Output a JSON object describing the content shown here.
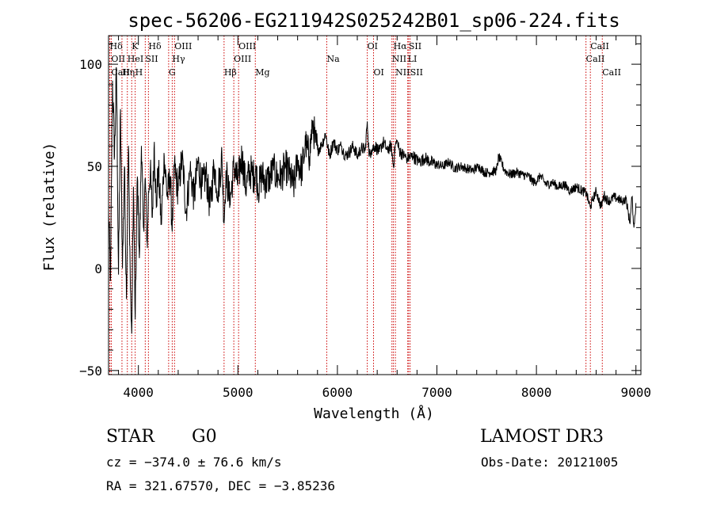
{
  "chart_data": {
    "type": "line",
    "title": "spec-56206-EG211942S025242B01_sp06-224.fits",
    "xlabel": "Wavelength (Å)",
    "ylabel": "Flux (relative)",
    "xlim": [
      3700,
      9050
    ],
    "ylim": [
      -52,
      114
    ],
    "xticks": [
      4000,
      5000,
      6000,
      7000,
      8000,
      9000
    ],
    "xtick_labels": [
      "4000",
      "5000",
      "6000",
      "7000",
      "8000",
      "9000"
    ],
    "yticks": [
      -50,
      0,
      50,
      100
    ],
    "ytick_labels": [
      "−50",
      "0",
      "50",
      "100"
    ],
    "grid": false,
    "series": [
      {
        "color": "#000000",
        "x": [
          3700,
          3720,
          3740,
          3760,
          3780,
          3800,
          3820,
          3840,
          3860,
          3880,
          3900,
          3920,
          3933,
          3950,
          3968,
          3990,
          4010,
          4030,
          4050,
          4070,
          4090,
          4101,
          4120,
          4140,
          4160,
          4180,
          4200,
          4230,
          4260,
          4290,
          4320,
          4340,
          4360,
          4400,
          4440,
          4480,
          4520,
          4560,
          4600,
          4640,
          4680,
          4720,
          4760,
          4800,
          4840,
          4861,
          4880,
          4920,
          4960,
          5000,
          5040,
          5080,
          5120,
          5160,
          5183,
          5200,
          5240,
          5280,
          5320,
          5360,
          5400,
          5440,
          5480,
          5520,
          5560,
          5600,
          5640,
          5680,
          5720,
          5750,
          5780,
          5800,
          5840,
          5880,
          5920,
          5960,
          6000,
          6040,
          6080,
          6120,
          6160,
          6200,
          6240,
          6280,
          6300,
          6320,
          6340,
          6380,
          6420,
          6460,
          6500,
          6540,
          6563,
          6580,
          6600,
          6620,
          6650,
          6700,
          6760,
          6820,
          6880,
          6940,
          7000,
          7060,
          7120,
          7180,
          7240,
          7300,
          7360,
          7420,
          7480,
          7540,
          7600,
          7620,
          7680,
          7740,
          7800,
          7860,
          7920,
          7980,
          8040,
          8100,
          8160,
          8220,
          8280,
          8340,
          8400,
          8460,
          8500,
          8540,
          8560,
          8600,
          8650,
          8680,
          8700,
          8740,
          8780,
          8820,
          8860,
          8900,
          8940,
          8960,
          8980,
          9000
        ],
        "y": [
          28,
          -5,
          92,
          55,
          98,
          -3,
          78,
          0,
          50,
          -15,
          60,
          -10,
          -32,
          40,
          -25,
          45,
          5,
          60,
          20,
          44,
          10,
          38,
          48,
          25,
          62,
          30,
          50,
          22,
          55,
          35,
          45,
          18,
          50,
          38,
          55,
          28,
          48,
          35,
          52,
          40,
          46,
          30,
          50,
          38,
          55,
          22,
          48,
          32,
          50,
          42,
          55,
          40,
          48,
          45,
          50,
          38,
          46,
          42,
          45,
          48,
          44,
          46,
          50,
          46,
          40,
          52,
          48,
          60,
          55,
          72,
          62,
          58,
          60,
          66,
          55,
          62,
          58,
          60,
          55,
          57,
          60,
          55,
          59,
          58,
          72,
          55,
          58,
          60,
          57,
          62,
          58,
          60,
          50,
          60,
          62,
          58,
          56,
          54,
          55,
          52,
          54,
          52,
          51,
          50,
          52,
          49,
          50,
          49,
          48,
          50,
          47,
          47,
          48,
          55,
          48,
          46,
          47,
          46,
          45,
          42,
          45,
          41,
          42,
          40,
          41,
          38,
          40,
          38,
          37,
          30,
          33,
          38,
          30,
          36,
          34,
          33,
          35,
          34,
          33,
          34,
          22,
          35,
          20,
          32
        ],
        "detail_note": ""
      }
    ],
    "spectral_lines": [
      {
        "name": "Hδ",
        "wavelength": 3712,
        "row": 0
      },
      {
        "name": "OII",
        "wavelength": 3727,
        "row": 1
      },
      {
        "name": "CaII",
        "wavelength": 3727,
        "row": 2
      },
      {
        "name": "Hη",
        "wavelength": 3835,
        "row": 2
      },
      {
        "name": "HeI",
        "wavelength": 3889,
        "row": 1
      },
      {
        "name": "K",
        "wavelength": 3933,
        "row": 0
      },
      {
        "name": "H",
        "wavelength": 3968,
        "row": 2
      },
      {
        "name": "SII",
        "wavelength": 4069,
        "row": 1
      },
      {
        "name": "Hδ",
        "wavelength": 4101,
        "row": 0
      },
      {
        "name": "OIII",
        "wavelength": 4363,
        "row": 0
      },
      {
        "name": "Hγ",
        "wavelength": 4340,
        "row": 1
      },
      {
        "name": "G",
        "wavelength": 4304,
        "row": 2
      },
      {
        "name": "Hβ",
        "wavelength": 4861,
        "row": 2
      },
      {
        "name": "OIII",
        "wavelength": 5007,
        "row": 0
      },
      {
        "name": "OIII",
        "wavelength": 4959,
        "row": 1
      },
      {
        "name": "Mg",
        "wavelength": 5175,
        "row": 2
      },
      {
        "name": "Na",
        "wavelength": 5893,
        "row": 1
      },
      {
        "name": "OI",
        "wavelength": 6300,
        "row": 0
      },
      {
        "name": "OI",
        "wavelength": 6363,
        "row": 2
      },
      {
        "name": "Hα",
        "wavelength": 6563,
        "row": 0
      },
      {
        "name": "NII",
        "wavelength": 6548,
        "row": 1
      },
      {
        "name": "NII",
        "wavelength": 6583,
        "row": 2
      },
      {
        "name": "SII",
        "wavelength": 6716,
        "row": 0
      },
      {
        "name": "LI",
        "wavelength": 6707,
        "row": 1
      },
      {
        "name": "SII",
        "wavelength": 6731,
        "row": 2
      },
      {
        "name": "CaII",
        "wavelength": 8542,
        "row": 0
      },
      {
        "name": "CaII",
        "wavelength": 8498,
        "row": 1
      },
      {
        "name": "CaII",
        "wavelength": 8662,
        "row": 2
      }
    ],
    "line_marker_color": "#cc0000"
  },
  "info": {
    "object_class": "STAR",
    "subclass": "G0",
    "survey": "LAMOST DR3",
    "cz": "cz = −374.0 ± 76.6 km/s",
    "obs_date": "Obs-Date: 20121005",
    "radec": "RA = 321.67570, DEC =  −3.85236"
  }
}
